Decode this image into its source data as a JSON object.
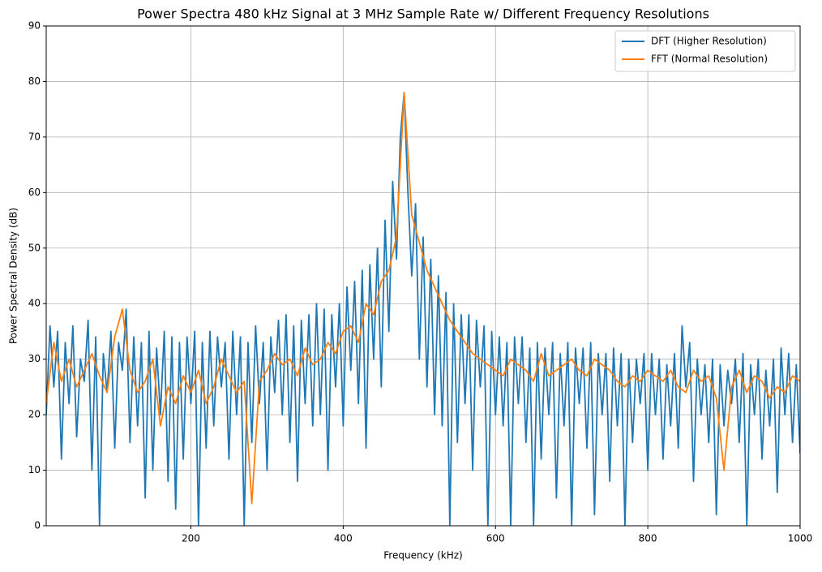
{
  "chart_data": {
    "type": "line",
    "title": "Power Spectra 480 kHz Signal at 3 MHz Sample Rate w/ Different Frequency Resolutions",
    "xlabel": "Frequency (kHz)",
    "ylabel": "Power Spectral Density (dB)",
    "xlim": [
      10,
      1000
    ],
    "ylim": [
      0,
      90
    ],
    "xticks": [
      200,
      400,
      600,
      800,
      1000
    ],
    "yticks": [
      0,
      10,
      20,
      30,
      40,
      50,
      60,
      70,
      80,
      90
    ],
    "grid": true,
    "legend": "upper right",
    "series": [
      {
        "name": "DFT (Higher Resolution)",
        "color": "#1f77b4",
        "x": [
          10,
          15,
          20,
          25,
          30,
          35,
          40,
          45,
          50,
          55,
          60,
          65,
          70,
          75,
          80,
          85,
          90,
          95,
          100,
          105,
          110,
          115,
          120,
          125,
          130,
          135,
          140,
          145,
          150,
          155,
          160,
          165,
          170,
          175,
          180,
          185,
          190,
          195,
          200,
          205,
          210,
          215,
          220,
          225,
          230,
          235,
          240,
          245,
          250,
          255,
          260,
          265,
          270,
          275,
          280,
          285,
          290,
          295,
          300,
          305,
          310,
          315,
          320,
          325,
          330,
          335,
          340,
          345,
          350,
          355,
          360,
          365,
          370,
          375,
          380,
          385,
          390,
          395,
          400,
          405,
          410,
          415,
          420,
          425,
          430,
          435,
          440,
          445,
          450,
          455,
          460,
          465,
          470,
          475,
          480,
          485,
          490,
          495,
          500,
          505,
          510,
          515,
          520,
          525,
          530,
          535,
          540,
          545,
          550,
          555,
          560,
          565,
          570,
          575,
          580,
          585,
          590,
          595,
          600,
          605,
          610,
          615,
          620,
          625,
          630,
          635,
          640,
          645,
          650,
          655,
          660,
          665,
          670,
          675,
          680,
          685,
          690,
          695,
          700,
          705,
          710,
          715,
          720,
          725,
          730,
          735,
          740,
          745,
          750,
          755,
          760,
          765,
          770,
          775,
          780,
          785,
          790,
          795,
          800,
          805,
          810,
          815,
          820,
          825,
          830,
          835,
          840,
          845,
          850,
          855,
          860,
          865,
          870,
          875,
          880,
          885,
          890,
          895,
          900,
          905,
          910,
          915,
          920,
          925,
          930,
          935,
          940,
          945,
          950,
          955,
          960,
          965,
          970,
          975,
          980,
          985,
          990,
          995,
          1000
        ],
        "values": [
          20,
          36,
          25,
          35,
          12,
          33,
          22,
          36,
          16,
          30,
          26,
          37,
          10,
          34,
          0,
          31,
          24,
          35,
          14,
          33,
          28,
          39,
          15,
          34,
          18,
          33,
          5,
          35,
          10,
          32,
          20,
          35,
          8,
          34,
          3,
          33,
          12,
          34,
          22,
          35,
          0,
          33,
          14,
          35,
          18,
          34,
          25,
          33,
          12,
          35,
          20,
          34,
          0,
          33,
          15,
          36,
          22,
          33,
          10,
          34,
          24,
          37,
          20,
          38,
          15,
          36,
          8,
          37,
          22,
          38,
          18,
          40,
          20,
          39,
          10,
          38,
          25,
          40,
          18,
          43,
          28,
          44,
          22,
          46,
          14,
          47,
          30,
          50,
          25,
          55,
          35,
          62,
          48,
          70,
          78,
          60,
          45,
          58,
          30,
          52,
          25,
          48,
          20,
          45,
          18,
          42,
          0,
          40,
          15,
          38,
          22,
          38,
          10,
          37,
          25,
          36,
          0,
          35,
          20,
          34,
          18,
          33,
          0,
          34,
          22,
          34,
          15,
          32,
          0,
          33,
          12,
          32,
          20,
          33,
          5,
          31,
          18,
          33,
          0,
          32,
          22,
          32,
          14,
          33,
          2,
          31,
          20,
          31,
          8,
          32,
          18,
          31,
          0,
          30,
          15,
          30,
          22,
          31,
          10,
          31,
          20,
          30,
          12,
          29,
          18,
          31,
          14,
          36,
          25,
          33,
          8,
          30,
          20,
          29,
          15,
          30,
          2,
          29,
          18,
          28,
          22,
          30,
          15,
          31,
          0,
          29,
          20,
          30,
          12,
          28,
          18,
          30,
          6,
          32,
          20,
          31,
          15,
          29,
          13
        ]
      },
      {
        "name": "FFT (Normal Resolution)",
        "color": "#ff7f0e",
        "x": [
          10,
          20,
          30,
          40,
          50,
          60,
          70,
          80,
          90,
          100,
          110,
          120,
          130,
          140,
          150,
          160,
          170,
          180,
          190,
          200,
          210,
          220,
          230,
          240,
          250,
          260,
          270,
          280,
          290,
          300,
          310,
          320,
          330,
          340,
          350,
          360,
          370,
          380,
          390,
          400,
          410,
          420,
          430,
          440,
          450,
          460,
          470,
          480,
          490,
          500,
          510,
          520,
          530,
          540,
          550,
          560,
          570,
          580,
          590,
          600,
          610,
          620,
          630,
          640,
          650,
          660,
          670,
          680,
          690,
          700,
          710,
          720,
          730,
          740,
          750,
          760,
          770,
          780,
          790,
          800,
          810,
          820,
          830,
          840,
          850,
          860,
          870,
          880,
          890,
          900,
          910,
          920,
          930,
          940,
          950,
          960,
          970,
          980,
          990,
          1000
        ],
        "values": [
          22,
          33,
          26,
          30,
          25,
          28,
          31,
          27,
          24,
          34,
          39,
          28,
          24,
          26,
          30,
          18,
          25,
          22,
          27,
          24,
          28,
          22,
          25,
          30,
          27,
          24,
          26,
          4,
          26,
          28,
          31,
          29,
          30,
          27,
          32,
          29,
          30,
          33,
          31,
          35,
          36,
          33,
          40,
          38,
          44,
          46,
          52,
          78,
          56,
          51,
          46,
          43,
          40,
          37,
          35,
          33,
          31,
          30,
          29,
          28,
          27,
          30,
          29,
          28,
          26,
          31,
          27,
          28,
          29,
          30,
          28,
          27,
          30,
          29,
          28,
          26,
          25,
          27,
          26,
          28,
          27,
          26,
          28,
          25,
          24,
          28,
          26,
          27,
          23,
          10,
          25,
          28,
          24,
          27,
          26,
          23,
          25,
          24,
          27,
          26
        ]
      }
    ]
  }
}
